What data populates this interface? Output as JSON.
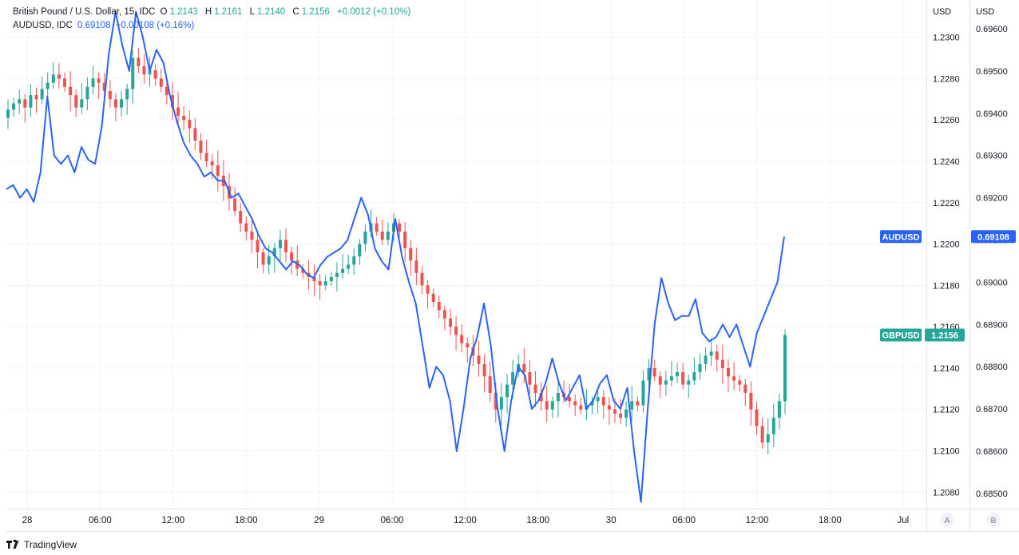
{
  "legend": {
    "gbp": {
      "name": "British Pound / U.S. Dollar, 15, IDC",
      "o_label": "O",
      "o": "1.2143",
      "h_label": "H",
      "h": "1.2161",
      "l_label": "L",
      "l": "1.2140",
      "c_label": "C",
      "c": "1.2156",
      "change": "+0.0012 (+0.10%)"
    },
    "aud": {
      "name": "AUDUSD, IDC",
      "value": "0.69108",
      "change": "+0.00108 (+0.16%)"
    }
  },
  "axes": {
    "right_a_label": "USD",
    "right_b_label": "USD",
    "scale_a_button": "A",
    "scale_b_button": "B"
  },
  "footer": {
    "brand": "TradingView"
  },
  "colors": {
    "up": "#26a69a",
    "down": "#ef5350",
    "aud_line": "#2962ff",
    "grid": "#f0f3fa",
    "axis_text": "#131722"
  },
  "chart_data": {
    "type": "line",
    "grid": true,
    "x_ticks": [
      "28",
      "06:00",
      "12:00",
      "18:00",
      "29",
      "06:00",
      "12:00",
      "18:00",
      "30",
      "06:00",
      "12:00",
      "18:00",
      "Jul"
    ],
    "left_scale": {
      "unit": "USD",
      "range": [
        1.2072,
        1.2318
      ],
      "ticks": [
        "1.2300",
        "1.2280",
        "1.2260",
        "1.2240",
        "1.2220",
        "1.2200",
        "1.2180",
        "1.2160",
        "1.2140",
        "1.2120",
        "1.2100",
        "1.2080"
      ]
    },
    "right_scale": {
      "unit": "USD",
      "range": [
        0.68464,
        0.69668
      ],
      "ticks": [
        "0.69600",
        "0.69500",
        "0.69400",
        "0.69300",
        "0.69200",
        "0.69100",
        "0.69000",
        "0.68900",
        "0.68800",
        "0.68700",
        "0.68600",
        "0.68500"
      ]
    },
    "series": [
      {
        "name": "GBPUSD",
        "type": "candlestick",
        "last": "1.2156",
        "last_value": 1.2156,
        "closes": [
          1.2265,
          1.2268,
          1.227,
          1.2266,
          1.2272,
          1.227,
          1.2275,
          1.2278,
          1.2282,
          1.228,
          1.2276,
          1.2272,
          1.2266,
          1.227,
          1.2276,
          1.228,
          1.2278,
          1.2274,
          1.227,
          1.2266,
          1.227,
          1.2275,
          1.229,
          1.2286,
          1.2282,
          1.2284,
          1.228,
          1.2276,
          1.2272,
          1.2266,
          1.2262,
          1.226,
          1.2256,
          1.225,
          1.2244,
          1.224,
          1.2238,
          1.2233,
          1.2228,
          1.2222,
          1.2216,
          1.221,
          1.2206,
          1.2202,
          1.2196,
          1.219,
          1.2194,
          1.2198,
          1.2202,
          1.2196,
          1.2192,
          1.2188,
          1.2186,
          1.2184,
          1.2182,
          1.218,
          1.2182,
          1.2184,
          1.2186,
          1.2188,
          1.219,
          1.2194,
          1.22,
          1.2206,
          1.221,
          1.2206,
          1.2202,
          1.2206,
          1.221,
          1.2206,
          1.2198,
          1.2192,
          1.2186,
          1.218,
          1.2176,
          1.2172,
          1.2168,
          1.2164,
          1.216,
          1.2156,
          1.2152,
          1.215,
          1.2146,
          1.2142,
          1.2136,
          1.2128,
          1.212,
          1.2126,
          1.2132,
          1.2138,
          1.2142,
          1.2138,
          1.2132,
          1.2128,
          1.2124,
          1.212,
          1.2124,
          1.2128,
          1.2126,
          1.2124,
          1.2122,
          1.212,
          1.2122,
          1.2124,
          1.2126,
          1.2122,
          1.212,
          1.2118,
          1.2116,
          1.212,
          1.2124,
          1.2122,
          1.2134,
          1.214,
          1.2136,
          1.2132,
          1.2134,
          1.2136,
          1.2138,
          1.2132,
          1.2134,
          1.2138,
          1.2142,
          1.2146,
          1.2148,
          1.2144,
          1.214,
          1.2136,
          1.2134,
          1.2132,
          1.2128,
          1.212,
          1.2112,
          1.2104,
          1.2108,
          1.2116,
          1.2124,
          1.2156
        ]
      },
      {
        "name": "AUDUSD",
        "type": "line",
        "last": "0.69108",
        "last_value": 0.69108,
        "values": [
          0.6922,
          0.6923,
          0.692,
          0.6922,
          0.6919,
          0.6926,
          0.6944,
          0.693,
          0.6928,
          0.693,
          0.6926,
          0.6932,
          0.6929,
          0.6928,
          0.6937,
          0.6954,
          0.6964,
          0.6956,
          0.695,
          0.6964,
          0.6958,
          0.695,
          0.6955,
          0.6952,
          0.6944,
          0.6938,
          0.6933,
          0.693,
          0.6928,
          0.6925,
          0.6926,
          0.6924,
          0.6924,
          0.692,
          0.6921,
          0.6918,
          0.6915,
          0.6911,
          0.6908,
          0.6907,
          0.6905,
          0.6903,
          0.6905,
          0.6904,
          0.6902,
          0.6901,
          0.6904,
          0.6906,
          0.6907,
          0.6908,
          0.691,
          0.6915,
          0.692,
          0.6916,
          0.6908,
          0.6905,
          0.6903,
          0.6915,
          0.6906,
          0.69,
          0.6895,
          0.6885,
          0.6875,
          0.688,
          0.6878,
          0.6872,
          0.686,
          0.687,
          0.6882,
          0.6887,
          0.6895,
          0.6885,
          0.687,
          0.686,
          0.6872,
          0.688,
          0.6878,
          0.687,
          0.6872,
          0.6876,
          0.6882,
          0.6876,
          0.6872,
          0.6875,
          0.6878,
          0.687,
          0.6872,
          0.6876,
          0.6878,
          0.6872,
          0.687,
          0.6875,
          0.686,
          0.6848,
          0.687,
          0.689,
          0.6901,
          0.6895,
          0.6891,
          0.6892,
          0.6892,
          0.6896,
          0.6888,
          0.6886,
          0.6887,
          0.689,
          0.6887,
          0.689,
          0.6885,
          0.688,
          0.6888,
          0.6892,
          0.6896,
          0.69,
          0.69108
        ]
      }
    ]
  }
}
